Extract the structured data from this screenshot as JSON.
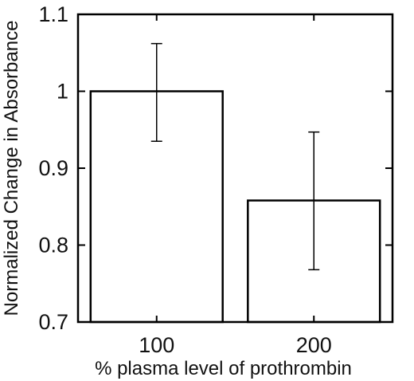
{
  "chart_data": {
    "type": "bar",
    "categories": [
      "100",
      "200"
    ],
    "values": [
      1.0,
      0.858
    ],
    "error_low": [
      0.935,
      0.768
    ],
    "error_high": [
      1.062,
      0.947
    ],
    "xlabel": "% plasma level of prothrombin",
    "ylabel": "Normalized Change in Absorbance",
    "ylim": [
      0.7,
      1.1
    ],
    "yticks": [
      0.7,
      0.8,
      0.9,
      1,
      1.1
    ],
    "ytick_labels": [
      "0.7",
      "0.8",
      "0.9",
      "1",
      "1.1"
    ],
    "grid": false,
    "bar_color": "#ffffff",
    "edge_color": "#000000"
  }
}
